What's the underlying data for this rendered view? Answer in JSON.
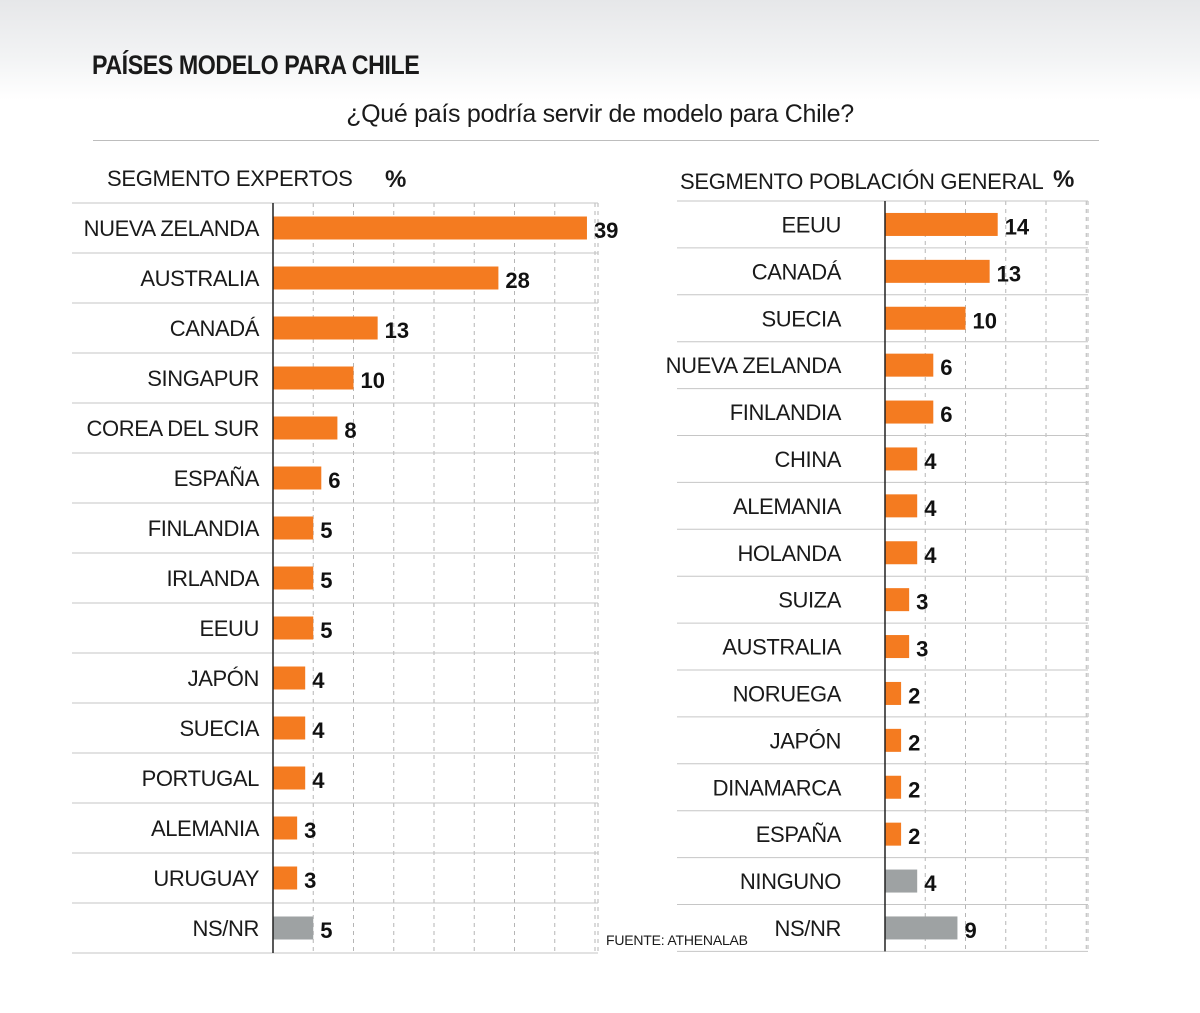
{
  "header": {
    "title": "PAÍSES MODELO PARA CHILE",
    "subtitle": "¿Qué país podría servir de modelo para Chile?"
  },
  "source": "FUENTE: ATHENALAB",
  "colors": {
    "main": "#f47b20",
    "other": "#9ea2a3",
    "grid": "#b5b5b5",
    "rule": "#c6c6c6"
  },
  "chart_data": [
    {
      "type": "bar",
      "orientation": "horizontal",
      "title": "SEGMENTO EXPERTOS",
      "unit": "%",
      "xlim": [
        0,
        40
      ],
      "grid": true,
      "categories": [
        "NUEVA ZELANDA",
        "AUSTRALIA",
        "CANADÁ",
        "SINGAPUR",
        "COREA DEL SUR",
        "ESPAÑA",
        "FINLANDIA",
        "IRLANDA",
        "EEUU",
        "JAPÓN",
        "SUECIA",
        "PORTUGAL",
        "ALEMANIA",
        "URUGUAY",
        "NS/NR"
      ],
      "values": [
        39,
        28,
        13,
        10,
        8,
        6,
        5,
        5,
        5,
        4,
        4,
        4,
        3,
        3,
        5
      ],
      "highlight": [
        "main",
        "main",
        "main",
        "main",
        "main",
        "main",
        "main",
        "main",
        "main",
        "main",
        "main",
        "main",
        "main",
        "main",
        "other"
      ]
    },
    {
      "type": "bar",
      "orientation": "horizontal",
      "title": "SEGMENTO POBLACIÓN GENERAL",
      "unit": "%",
      "xlim": [
        0,
        25
      ],
      "grid": true,
      "categories": [
        "EEUU",
        "CANADÁ",
        "SUECIA",
        "NUEVA ZELANDA",
        "FINLANDIA",
        "CHINA",
        "ALEMANIA",
        "HOLANDA",
        "SUIZA",
        "AUSTRALIA",
        "NORUEGA",
        "JAPÓN",
        "DINAMARCA",
        "ESPAÑA",
        "NINGUNO",
        "NS/NR"
      ],
      "values": [
        14,
        13,
        10,
        6,
        6,
        4,
        4,
        4,
        3,
        3,
        2,
        2,
        2,
        2,
        4,
        9
      ],
      "highlight": [
        "main",
        "main",
        "main",
        "main",
        "main",
        "main",
        "main",
        "main",
        "main",
        "main",
        "main",
        "main",
        "main",
        "main",
        "other",
        "other"
      ]
    }
  ]
}
